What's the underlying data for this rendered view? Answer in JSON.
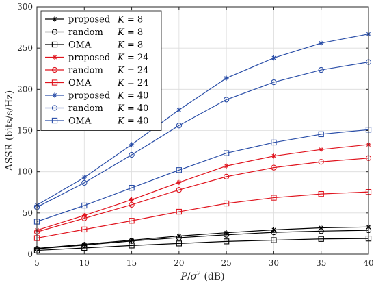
{
  "chart_data": {
    "type": "line",
    "xlabel": "P/σ² (dB)",
    "xlabel_parts": {
      "var": "P",
      "slash": "/",
      "sigma": "σ",
      "sup": "2",
      "unit": " (dB)"
    },
    "ylabel": "ASSR (bits/s/Hz)",
    "xlim": [
      5,
      40
    ],
    "ylim": [
      0,
      300
    ],
    "xticks": [
      5,
      10,
      15,
      20,
      25,
      30,
      35,
      40
    ],
    "yticks": [
      0,
      50,
      100,
      150,
      200,
      250,
      300
    ],
    "grid": true,
    "legend_position": "top-left",
    "x": [
      5,
      10,
      15,
      20,
      25,
      30,
      35,
      40
    ],
    "series": [
      {
        "name": "proposed",
        "k_var": "K",
        "k_eq": " = 8",
        "color": "#000000",
        "marker": "star",
        "values": [
          7,
          12,
          17,
          22,
          26,
          29.5,
          32,
          33
        ]
      },
      {
        "name": "random",
        "k_var": "K",
        "k_eq": " = 8",
        "color": "#000000",
        "marker": "circle",
        "values": [
          6.5,
          11,
          16,
          20,
          23.5,
          26.5,
          28,
          29
        ]
      },
      {
        "name": "OMA",
        "k_var": "K",
        "k_eq": " = 8",
        "color": "#000000",
        "marker": "square",
        "values": [
          4.5,
          7.5,
          10.5,
          13,
          15.5,
          17,
          18.5,
          19
        ]
      },
      {
        "name": "proposed",
        "k_var": "K",
        "k_eq": " = 24",
        "color": "#e0141e",
        "marker": "star",
        "values": [
          29,
          47,
          66,
          87,
          107,
          119,
          127,
          133
        ]
      },
      {
        "name": "random",
        "k_var": "K",
        "k_eq": " = 24",
        "color": "#e0141e",
        "marker": "circle",
        "values": [
          27,
          43.5,
          60,
          78,
          94,
          105,
          112,
          116.5
        ]
      },
      {
        "name": "OMA",
        "k_var": "K",
        "k_eq": " = 24",
        "color": "#e0141e",
        "marker": "square",
        "values": [
          19.5,
          30,
          40.5,
          51.5,
          61.5,
          68.5,
          73,
          75.5
        ]
      },
      {
        "name": "proposed",
        "k_var": "K",
        "k_eq": " = 40",
        "color": "#2a4ea8",
        "marker": "star",
        "values": [
          59.5,
          93,
          133,
          175,
          213.5,
          238,
          256,
          267
        ]
      },
      {
        "name": "random",
        "k_var": "K",
        "k_eq": " = 40",
        "color": "#2a4ea8",
        "marker": "circle",
        "values": [
          57,
          86.5,
          120.5,
          156,
          187.5,
          208.5,
          223.5,
          233
        ]
      },
      {
        "name": "OMA",
        "k_var": "K",
        "k_eq": " = 40",
        "color": "#2a4ea8",
        "marker": "square",
        "values": [
          39.5,
          59,
          80.5,
          102,
          122.5,
          135.5,
          145.5,
          151
        ]
      }
    ]
  }
}
